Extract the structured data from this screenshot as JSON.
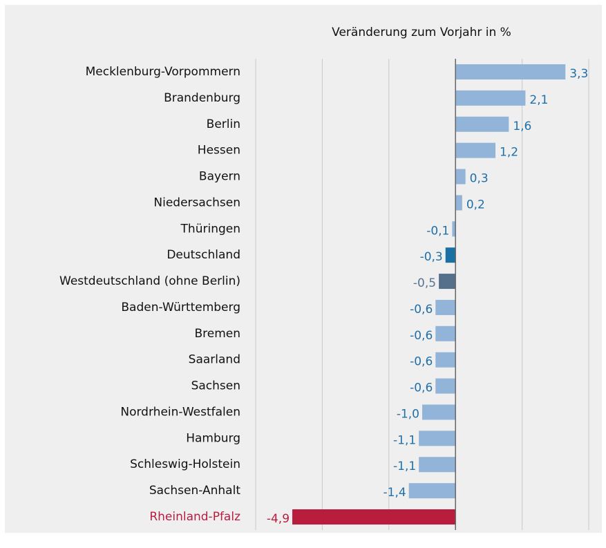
{
  "chart_data": {
    "type": "bar",
    "orientation": "horizontal",
    "title": "Veränderung zum Vorjahr in %",
    "categories": [
      "Mecklenburg-Vorpommern",
      "Brandenburg",
      "Berlin",
      "Hessen",
      "Bayern",
      "Niedersachsen",
      "Thüringen",
      "Deutschland",
      "Westdeutschland (ohne Berlin)",
      "Baden-Württemberg",
      "Bremen",
      "Saarland",
      "Sachsen",
      "Nordrhein-Westfalen",
      "Hamburg",
      "Schleswig-Holstein",
      "Sachsen-Anhalt",
      "Rheinland-Pfalz"
    ],
    "values": [
      3.3,
      2.1,
      1.6,
      1.2,
      0.3,
      0.2,
      -0.1,
      -0.3,
      -0.5,
      -0.6,
      -0.6,
      -0.6,
      -0.6,
      -1.0,
      -1.1,
      -1.1,
      -1.4,
      -4.9
    ],
    "value_labels": [
      "3,3",
      "2,1",
      "1,6",
      "1,2",
      "0,3",
      "0,2",
      "-0,1",
      "-0,3",
      "-0,5",
      "-0,6",
      "-0,6",
      "-0,6",
      "-0,6",
      "-1,0",
      "-1,1",
      "-1,1",
      "-1,4",
      "-4,9"
    ],
    "colors": [
      "#92b4d8",
      "#92b4d8",
      "#92b4d8",
      "#92b4d8",
      "#92b4d8",
      "#92b4d8",
      "#92b4d8",
      "#1a70a3",
      "#566f8b",
      "#92b4d8",
      "#92b4d8",
      "#92b4d8",
      "#92b4d8",
      "#92b4d8",
      "#92b4d8",
      "#92b4d8",
      "#92b4d8",
      "#b81d3e"
    ],
    "label_colors": [
      "#1f6fa8",
      "#1f6fa8",
      "#1f6fa8",
      "#1f6fa8",
      "#1f6fa8",
      "#1f6fa8",
      "#1f6fa8",
      "#1f6fa8",
      "#5a7390",
      "#1f6fa8",
      "#1f6fa8",
      "#1f6fa8",
      "#1f6fa8",
      "#1f6fa8",
      "#1f6fa8",
      "#1f6fa8",
      "#1f6fa8",
      "#b81d3e"
    ],
    "category_colors": [
      "#111",
      "#111",
      "#111",
      "#111",
      "#111",
      "#111",
      "#111",
      "#111",
      "#111",
      "#111",
      "#111",
      "#111",
      "#111",
      "#111",
      "#111",
      "#111",
      "#111",
      "#b81d3e"
    ],
    "xlim": [
      -6,
      4
    ],
    "xticks": [
      -6,
      -4,
      -2,
      0,
      2,
      4
    ],
    "grid": true
  }
}
